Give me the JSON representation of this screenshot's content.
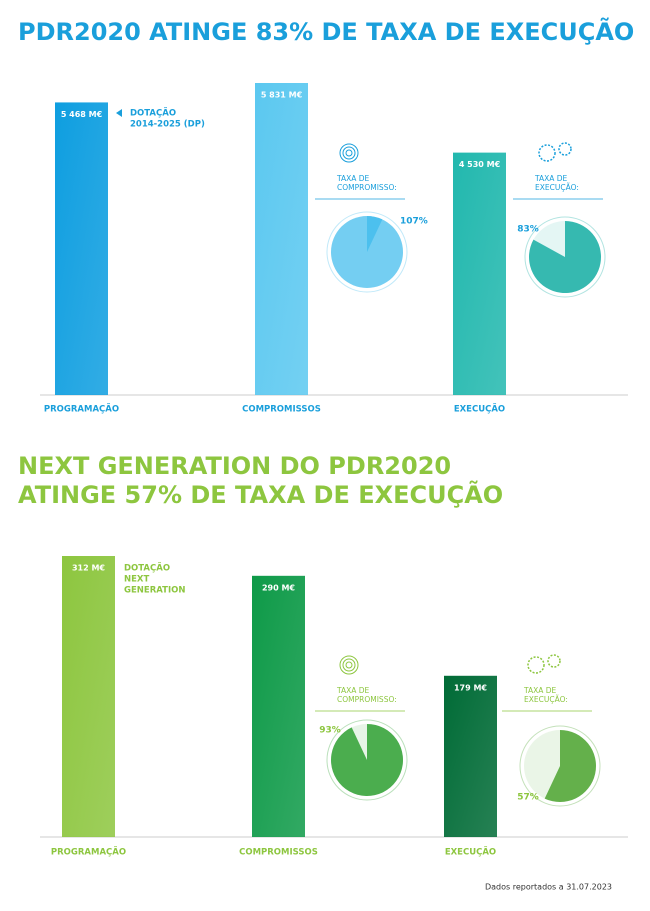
{
  "chart_data": [
    {
      "type": "bar",
      "title": [
        "PDR2020 ATINGE 83% DE TAXA DE EXECUÇÃO"
      ],
      "title_color": "#1a9fdb",
      "categories": [
        "PROGRAMAÇÃO",
        "COMPROMISSOS",
        "EXECUÇÃO"
      ],
      "values": [
        5468,
        5831,
        4530
      ],
      "value_labels": [
        "5 468 M€",
        "5 831 M€",
        "4 530 M€"
      ],
      "colors": [
        "#0e9ee0",
        "#5bc8f0",
        "#22b8ae"
      ],
      "annotation": [
        "DOTAÇÃO",
        "2014-2025 (DP)"
      ],
      "rates": [
        {
          "label": [
            "TAXA DE",
            "COMPROMISSO:"
          ],
          "value": 107,
          "value_label": "107%",
          "color": "#4cc0ee"
        },
        {
          "label": [
            "TAXA DE",
            "EXECUÇÃO:"
          ],
          "value": 83,
          "value_label": "83%",
          "color": "#22b2a8"
        }
      ]
    },
    {
      "type": "bar",
      "title": [
        "NEXT GENERATION DO PDR2020",
        "ATINGE 57% DE TAXA DE EXECUÇÃO"
      ],
      "title_color": "#8dc63f",
      "categories": [
        "PROGRAMAÇÃO",
        "COMPROMISSOS",
        "EXECUÇÃO"
      ],
      "values": [
        312,
        290,
        179
      ],
      "value_labels": [
        "312 M€",
        "290 M€",
        "179 M€"
      ],
      "colors": [
        "#8dc63f",
        "#0e9a48",
        "#006b36"
      ],
      "annotation": [
        "DOTAÇÃO",
        "NEXT",
        "GENERATION"
      ],
      "rates": [
        {
          "label": [
            "TAXA DE",
            "COMPROMISSO:"
          ],
          "value": 93,
          "value_label": "93%",
          "color": "#3aa53d"
        },
        {
          "label": [
            "TAXA DE",
            "EXECUÇÃO:"
          ],
          "value": 57,
          "value_label": "57%",
          "color": "#55a93a"
        }
      ]
    }
  ],
  "footer": "Dados reportados a 31.07.2023"
}
